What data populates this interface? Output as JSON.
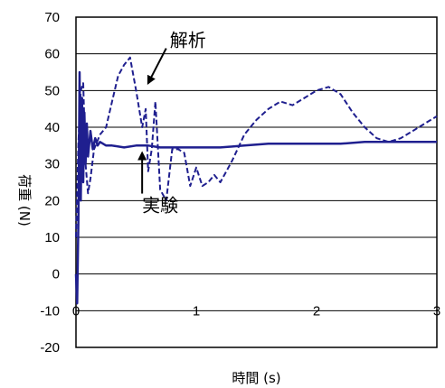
{
  "chart_data": {
    "type": "line",
    "xlabel": "時間 (s)",
    "ylabel": "荷重 (N)",
    "xlim": [
      0,
      3
    ],
    "ylim": [
      -20,
      70
    ],
    "xticks": [
      0,
      1,
      2,
      3
    ],
    "yticks": [
      -20,
      -10,
      0,
      10,
      20,
      30,
      40,
      50,
      60,
      70
    ],
    "grid": "horizontal",
    "legend": "none",
    "series_color": "#1f1f8f",
    "series": [
      {
        "style": "dashed",
        "x": [
          0.0,
          0.02,
          0.04,
          0.06,
          0.08,
          0.1,
          0.12,
          0.15,
          0.2,
          0.25,
          0.3,
          0.35,
          0.4,
          0.45,
          0.5,
          0.55,
          0.58,
          0.6,
          0.63,
          0.66,
          0.7,
          0.75,
          0.8,
          0.85,
          0.9,
          0.95,
          1.0,
          1.05,
          1.1,
          1.15,
          1.2,
          1.25,
          1.3,
          1.4,
          1.5,
          1.6,
          1.7,
          1.8,
          1.9,
          2.0,
          2.1,
          2.2,
          2.3,
          2.4,
          2.5,
          2.6,
          2.7,
          2.8,
          2.9,
          3.0
        ],
        "y": [
          10,
          36,
          50,
          52,
          30,
          22,
          26,
          34,
          38,
          40,
          47,
          54,
          57,
          59,
          50,
          40,
          45,
          28,
          34,
          47,
          23,
          20,
          34,
          34,
          33,
          24,
          29,
          24,
          25,
          27,
          25,
          28,
          31,
          38,
          42,
          45,
          47,
          46,
          48,
          50,
          51,
          49,
          44,
          40,
          37,
          36,
          37,
          39,
          41,
          43
        ]
      },
      {
        "style": "solid",
        "x": [
          0.0,
          0.01,
          0.02,
          0.03,
          0.04,
          0.05,
          0.06,
          0.07,
          0.08,
          0.09,
          0.1,
          0.12,
          0.14,
          0.16,
          0.18,
          0.2,
          0.25,
          0.3,
          0.4,
          0.5,
          0.6,
          0.7,
          0.8,
          1.0,
          1.2,
          1.4,
          1.6,
          1.8,
          2.0,
          2.2,
          2.4,
          2.6,
          2.8,
          3.0
        ],
        "y": [
          0,
          -8,
          15,
          55,
          20,
          48,
          25,
          44,
          30,
          41,
          32,
          39,
          34,
          37,
          35,
          36,
          35,
          35,
          34.5,
          35,
          35,
          34.5,
          34.5,
          34.5,
          34.5,
          35,
          35.5,
          35.5,
          35.5,
          35.5,
          36,
          36,
          36,
          36
        ]
      }
    ],
    "annotations": [
      {
        "text": "解析",
        "x": 0.78,
        "y": 62,
        "arrow_to_x": 0.6,
        "arrow_to_y": 52
      },
      {
        "text": "実験",
        "x": 0.55,
        "y": 17,
        "arrow_to_x": 0.55,
        "arrow_to_y": 33
      }
    ]
  }
}
